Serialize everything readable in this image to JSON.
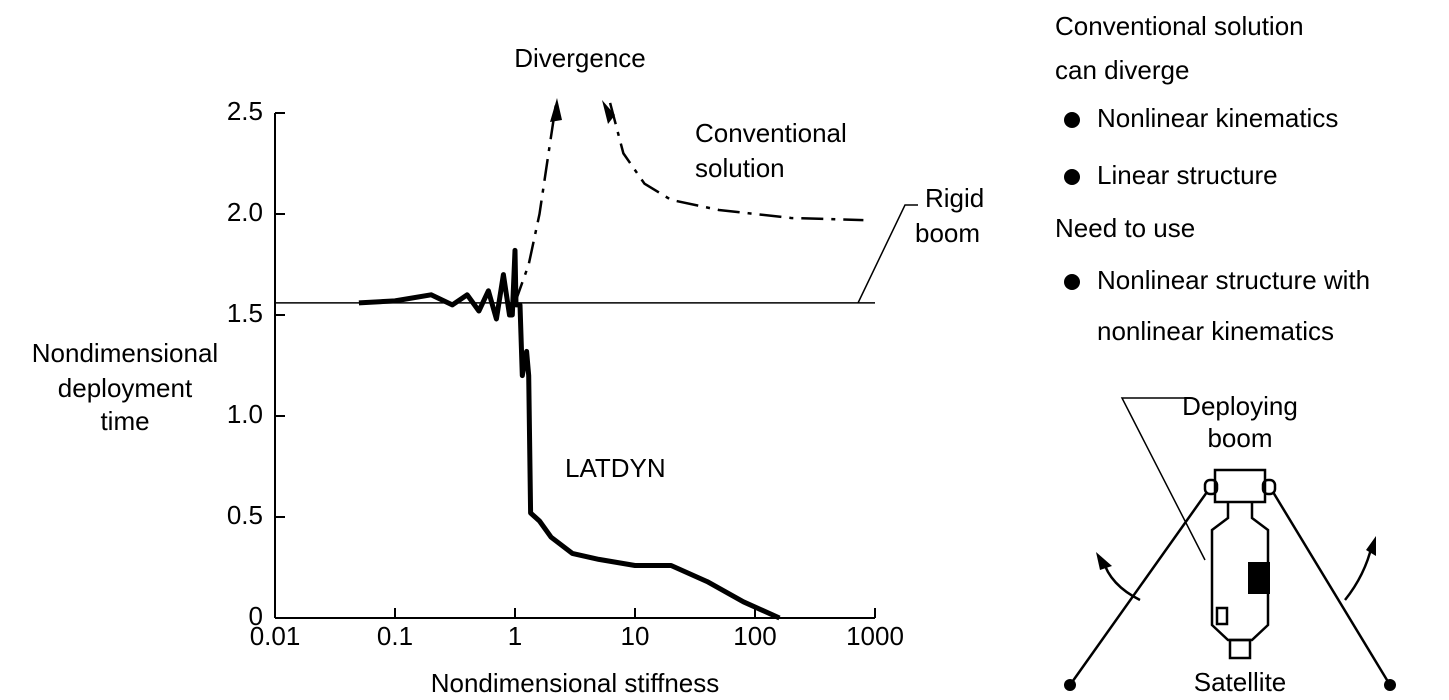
{
  "chart_data": {
    "type": "line",
    "log_x": true,
    "xlabel": "Nondimensional stiffness",
    "ylabel": [
      "Nondimensional",
      "deployment",
      "time"
    ],
    "xlim": [
      0.01,
      1000
    ],
    "ylim": [
      0,
      2.5
    ],
    "xticks": [
      0.01,
      0.1,
      1,
      10,
      100,
      1000
    ],
    "yticks": [
      0,
      0.5,
      {
        "value": 1,
        "label": "1.0"
      },
      1.5,
      {
        "value": 2,
        "label": "2.0"
      },
      2.5
    ],
    "series": [
      {
        "color": "#000",
        "style": "thick",
        "x": [
          0.05,
          0.1,
          0.2,
          0.3,
          0.4,
          0.5,
          0.6,
          0.7,
          0.8,
          0.9,
          0.95,
          1.0,
          1.02,
          1.1,
          1.15,
          1.25,
          1.3,
          1.35,
          1.6,
          2,
          3,
          5,
          10,
          20,
          40,
          80,
          160
        ],
        "values": [
          1.56,
          1.57,
          1.6,
          1.55,
          1.6,
          1.52,
          1.62,
          1.48,
          1.7,
          1.5,
          1.5,
          1.82,
          1.55,
          1.55,
          1.2,
          1.32,
          1.2,
          0.52,
          0.48,
          0.4,
          0.32,
          0.29,
          0.26,
          0.26,
          0.18,
          0.08,
          0
        ]
      },
      {
        "color": "#000",
        "style": "dashdot",
        "x": [
          1,
          1.3,
          1.6,
          1.9,
          2.2,
          null,
          6.2,
          8,
          12,
          20,
          50,
          200,
          800
        ],
        "values": [
          1.56,
          1.75,
          2.0,
          2.3,
          2.55,
          null,
          2.55,
          2.3,
          2.15,
          2.07,
          2.02,
          1.98,
          1.97
        ]
      },
      {
        "color": "#000",
        "style": "thin",
        "x": [
          0.01,
          1000
        ],
        "values": [
          1.56,
          1.56
        ]
      }
    ],
    "annotations": [
      {
        "lines": [
          "Divergence"
        ]
      },
      {
        "lines": [
          "Conventional",
          "solution"
        ]
      },
      {
        "lines": [
          "Rigid",
          "boom"
        ]
      },
      {
        "lines": [
          "LATDYN"
        ]
      }
    ]
  },
  "sidebar": {
    "lines": [
      "Conventional solution",
      "can diverge"
    ],
    "bullets1": [
      "Nonlinear kinematics",
      "Linear structure"
    ],
    "heading2": "Need to use",
    "bullets2": [
      "Nonlinear structure with"
    ],
    "continuation": "nonlinear kinematics"
  },
  "diagram": {
    "boom_label": [
      "Deploying",
      "boom"
    ],
    "body_label": "Satellite"
  }
}
